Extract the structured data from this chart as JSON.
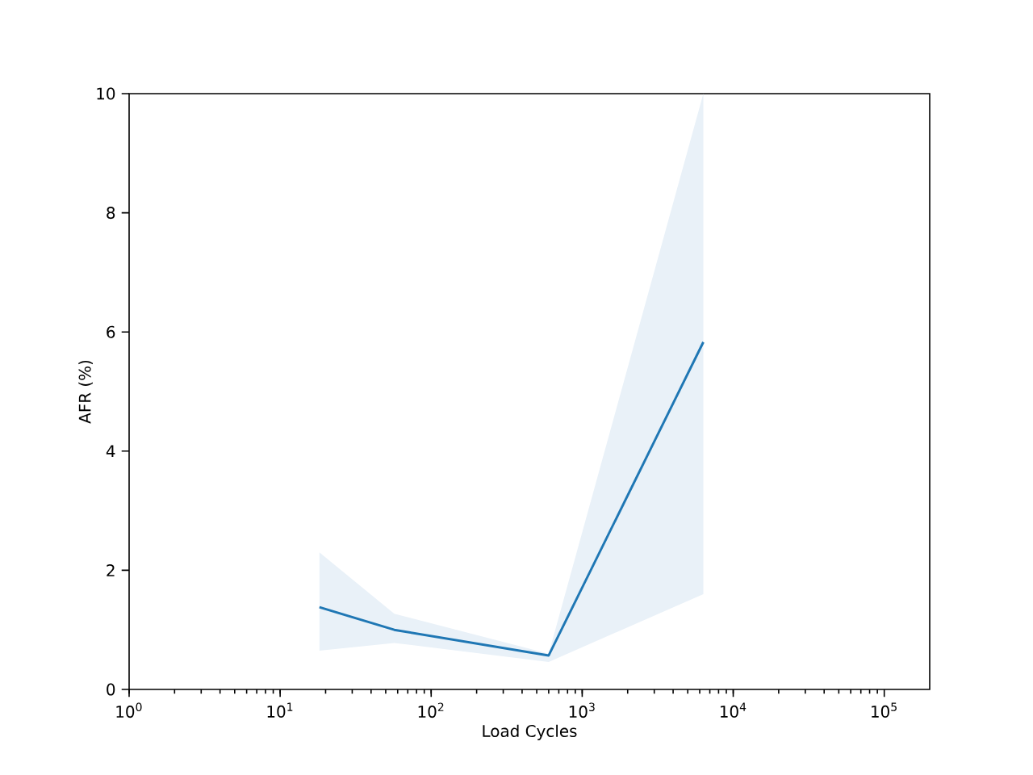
{
  "chart_data": {
    "type": "line",
    "xlabel": "Load Cycles",
    "ylabel": "AFR (%)",
    "log": "x",
    "x": [
      18.2,
      57,
      600,
      6340
    ],
    "series": [
      {
        "color": "#1f77b4",
        "values": [
          1.38,
          1.0,
          0.57,
          5.83
        ],
        "lower": [
          0.65,
          0.78,
          0.46,
          1.6
        ],
        "upper": [
          2.3,
          1.27,
          0.6,
          10
        ]
      }
    ],
    "xlim": [
      1,
      200000
    ],
    "ylim": [
      0,
      10
    ],
    "xticks": [
      {
        "value": 1,
        "label": "10$^{0}$"
      },
      {
        "value": 10,
        "label": "10$^{1}$"
      },
      {
        "value": 100,
        "label": "10$^{2}$"
      },
      {
        "value": 1000,
        "label": "10$^{3}$"
      },
      {
        "value": 10000,
        "label": "10$^{4}$"
      },
      {
        "value": 100000,
        "label": "10$^{5}$"
      }
    ],
    "yticks": [
      0,
      2,
      4,
      6,
      8,
      10
    ],
    "grid": false
  }
}
